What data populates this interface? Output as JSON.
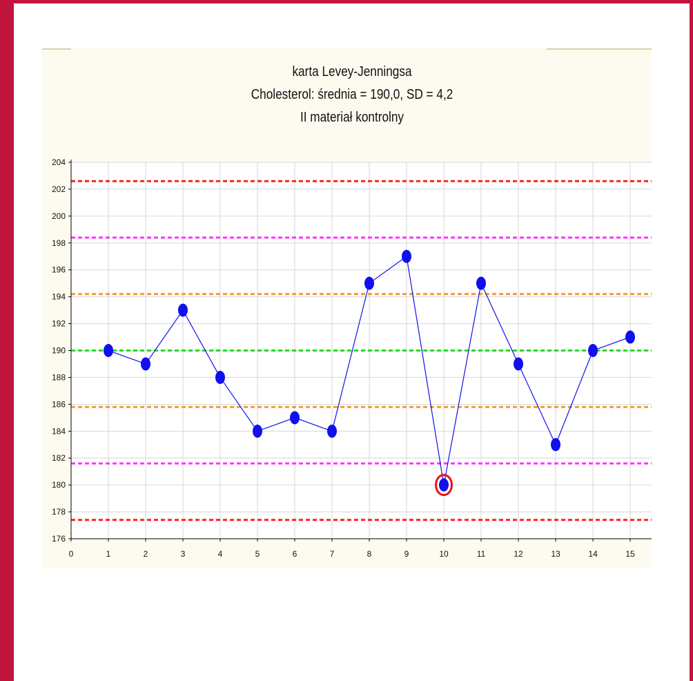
{
  "chart_data": {
    "type": "line",
    "title": "karta Levey-Jenningsa",
    "subtitle": "Cholesterol: średnia = 190,0, SD = 4,2",
    "subtitle2": "II materiał kontrolny",
    "xlabel": "",
    "ylabel": "",
    "xlim": [
      0,
      15.5
    ],
    "ylim": [
      176,
      204
    ],
    "x_ticks": [
      0,
      1,
      2,
      3,
      4,
      5,
      6,
      7,
      8,
      9,
      10,
      11,
      12,
      13,
      14,
      15
    ],
    "y_ticks": [
      176,
      178,
      180,
      182,
      184,
      186,
      188,
      190,
      192,
      194,
      196,
      198,
      200,
      202,
      204
    ],
    "grid": true,
    "legend": "none",
    "series": [
      {
        "x": [
          1,
          2,
          3,
          4,
          5,
          6,
          7,
          8,
          9,
          10,
          11,
          12,
          13,
          14,
          15
        ],
        "values": [
          190,
          189,
          193,
          188,
          184,
          185,
          184,
          195,
          197,
          180,
          195,
          189,
          183,
          190,
          191
        ],
        "color": "#1010ee"
      }
    ],
    "reference_lines": [
      {
        "y": 202.6,
        "color": "#ff2020"
      },
      {
        "y": 198.4,
        "color": "#ff33ff"
      },
      {
        "y": 194.2,
        "color": "#f39a30"
      },
      {
        "y": 190.0,
        "color": "#22dd22"
      },
      {
        "y": 185.8,
        "color": "#f39a30"
      },
      {
        "y": 181.6,
        "color": "#ff33ff"
      },
      {
        "y": 177.4,
        "color": "#ff2020"
      }
    ],
    "highlighted_points": [
      {
        "x": 10,
        "y": 180,
        "ring_color": "#e8101a"
      }
    ]
  }
}
